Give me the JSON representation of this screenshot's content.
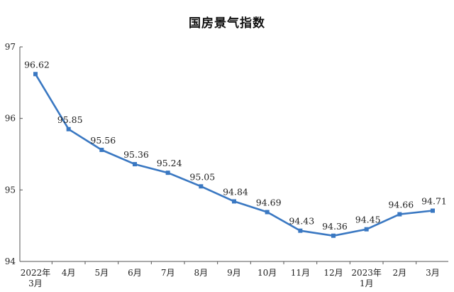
{
  "chart_data": {
    "type": "line",
    "title": "国房景气指数",
    "xlabel": "",
    "ylabel": "",
    "categories": [
      [
        "2022年",
        "3月"
      ],
      [
        "4月"
      ],
      [
        "5月"
      ],
      [
        "6月"
      ],
      [
        "7月"
      ],
      [
        "8月"
      ],
      [
        "9月"
      ],
      [
        "10月"
      ],
      [
        "11月"
      ],
      [
        "12月"
      ],
      [
        "2023年",
        "1月"
      ],
      [
        "2月"
      ],
      [
        "3月"
      ]
    ],
    "values": [
      96.62,
      95.85,
      95.56,
      95.36,
      95.24,
      95.05,
      94.84,
      94.69,
      94.43,
      94.36,
      94.45,
      94.66,
      94.71
    ],
    "value_labels": [
      "96.62",
      "95.85",
      "95.56",
      "95.36",
      "95.24",
      "95.05",
      "94.84",
      "94.69",
      "94.43",
      "94.36",
      "94.45",
      "94.66",
      "94.71"
    ],
    "ylim": [
      94,
      97
    ],
    "yticks": [
      "94",
      "95",
      "96",
      "97"
    ],
    "grid": false,
    "legend": "none",
    "line_color": "#3a78c2",
    "marker": "square"
  }
}
